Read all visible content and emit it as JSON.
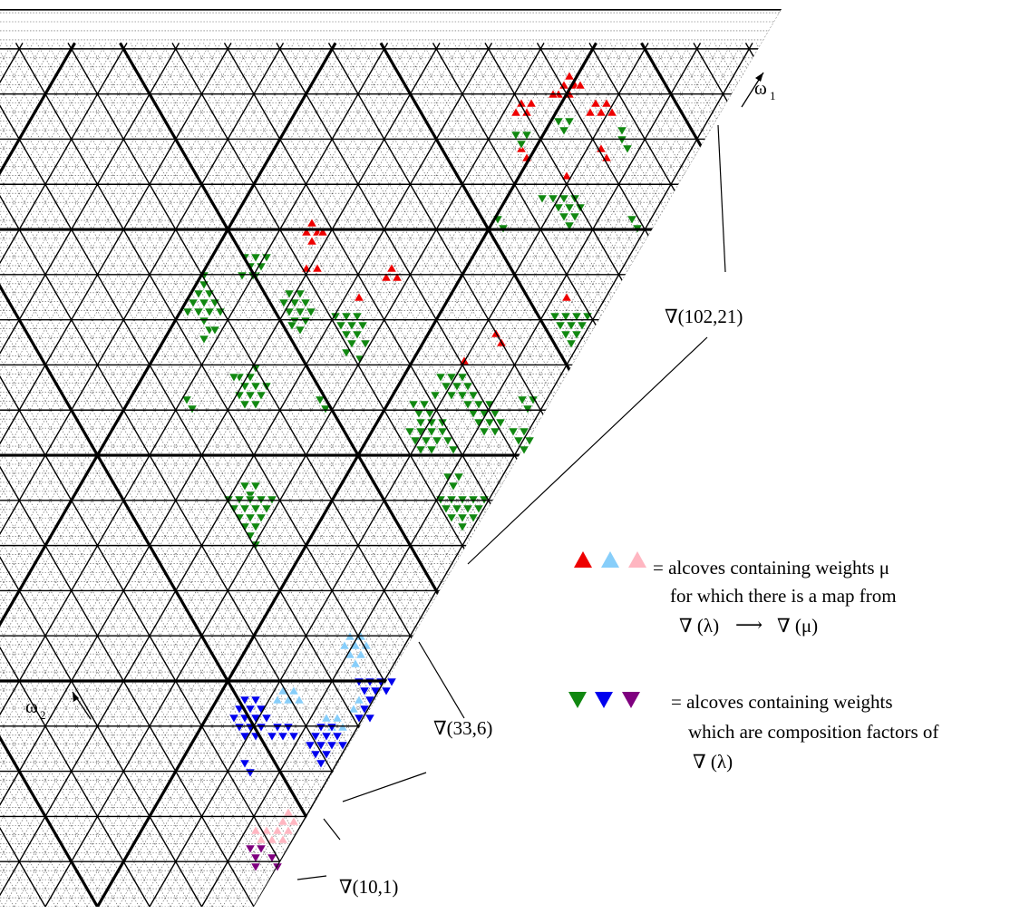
{
  "labels": {
    "omega1": "ω",
    "omega1_sub": "1",
    "omega2": "ω",
    "omega2_sub": "2",
    "nabla_102_21": "∇(102,21)",
    "nabla_33_6": "∇(33,6)",
    "nabla_10_1": "∇(10,1)"
  },
  "legend": {
    "up": {
      "line1": "= alcoves containing weights  μ",
      "line2": "for which there is a map from",
      "line3_left": "∇ (λ)",
      "line3_arrow": "⟶",
      "line3_right": "∇ (μ)"
    },
    "down": {
      "line1": "= alcoves containing weights",
      "line2": "which are composition factors of",
      "line3": "∇ (λ)"
    }
  },
  "colors": {
    "red": "#ee0000",
    "light_blue": "#87cefa",
    "pink": "#ffb6c1",
    "green": "#118811",
    "blue": "#0000ee",
    "purple": "#7f007f",
    "grid_dotted": "#555555",
    "line": "#000000"
  }
}
